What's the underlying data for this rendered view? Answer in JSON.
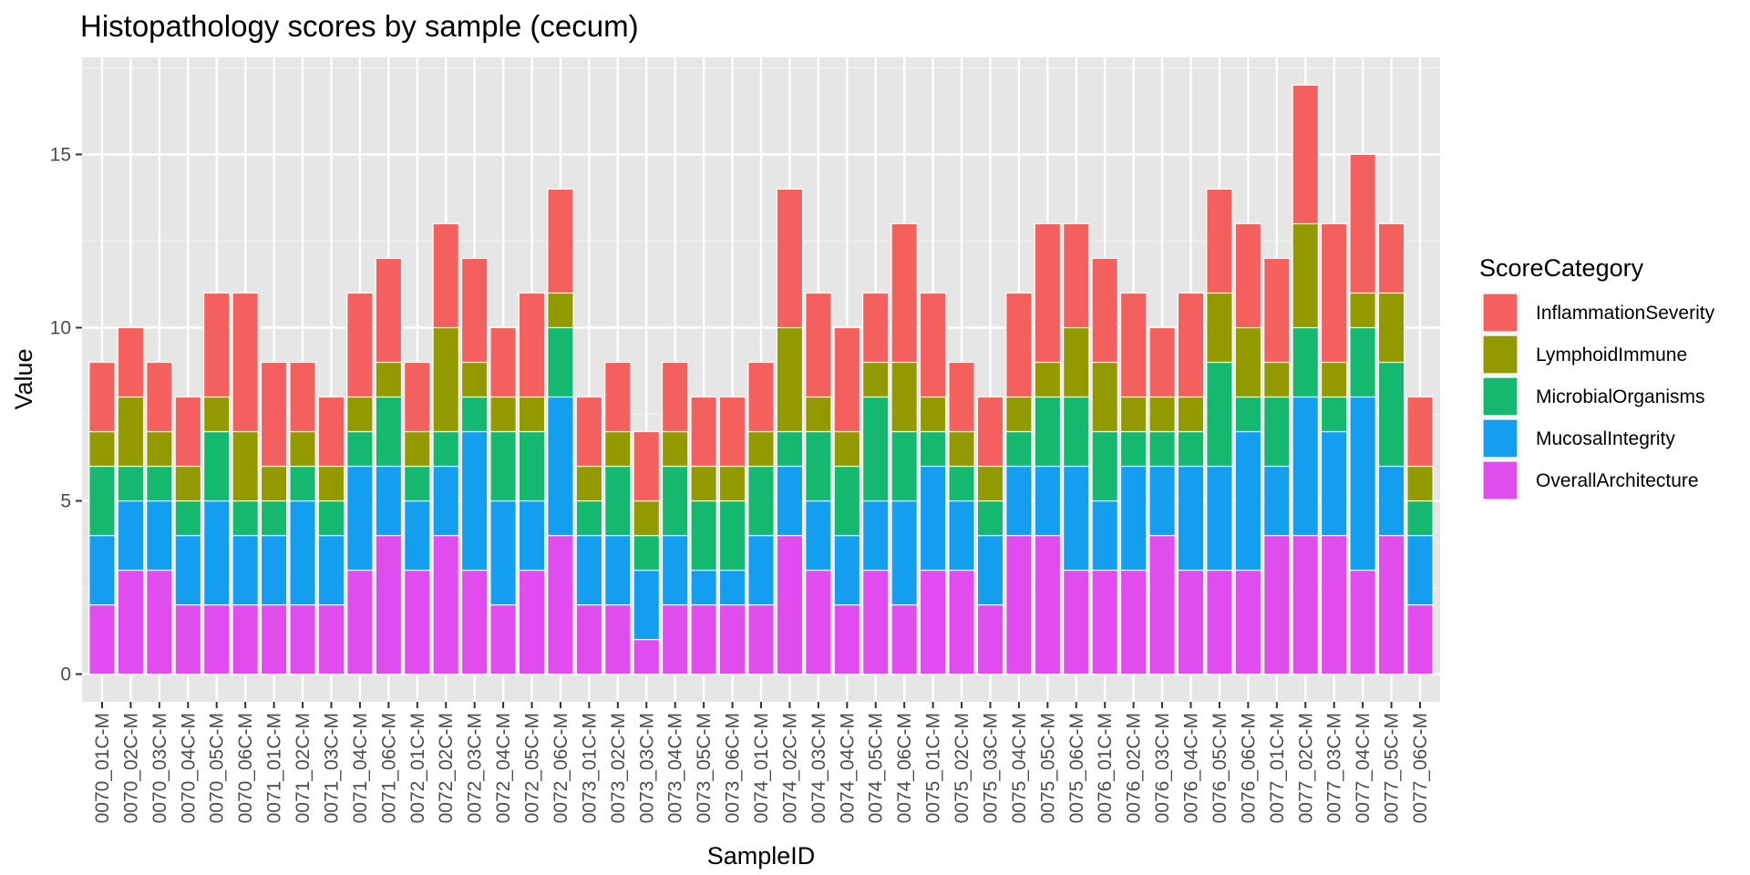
{
  "chart_data": {
    "type": "bar",
    "stacked": true,
    "title": "Histopathology scores by sample (cecum)",
    "xlabel": "SampleID",
    "ylabel": "Value",
    "ylim": [
      -0.8,
      17.8
    ],
    "yticks": [
      0,
      5,
      10,
      15
    ],
    "grid": true,
    "legend": {
      "title": "ScoreCategory",
      "position": "right"
    },
    "categories": [
      "0070_01C-M",
      "0070_02C-M",
      "0070_03C-M",
      "0070_04C-M",
      "0070_05C-M",
      "0070_06C-M",
      "0071_01C-M",
      "0071_02C-M",
      "0071_03C-M",
      "0071_04C-M",
      "0071_06C-M",
      "0072_01C-M",
      "0072_02C-M",
      "0072_03C-M",
      "0072_04C-M",
      "0072_05C-M",
      "0072_06C-M",
      "0073_01C-M",
      "0073_02C-M",
      "0073_03C-M",
      "0073_04C-M",
      "0073_05C-M",
      "0073_06C-M",
      "0074_01C-M",
      "0074_02C-M",
      "0074_03C-M",
      "0074_04C-M",
      "0074_05C-M",
      "0074_06C-M",
      "0075_01C-M",
      "0075_02C-M",
      "0075_03C-M",
      "0075_04C-M",
      "0075_05C-M",
      "0075_06C-M",
      "0076_01C-M",
      "0076_02C-M",
      "0076_03C-M",
      "0076_04C-M",
      "0076_05C-M",
      "0076_06C-M",
      "0077_01C-M",
      "0077_02C-M",
      "0077_03C-M",
      "0077_04C-M",
      "0077_05C-M",
      "0077_06C-M"
    ],
    "series": [
      {
        "name": "OverallArchitecture",
        "color": "#e04ced",
        "values": [
          2,
          3,
          3,
          2,
          2,
          2,
          2,
          2,
          2,
          3,
          4,
          3,
          4,
          3,
          2,
          3,
          4,
          2,
          2,
          1,
          2,
          2,
          2,
          2,
          4,
          3,
          2,
          3,
          2,
          3,
          3,
          2,
          4,
          4,
          3,
          3,
          3,
          4,
          3,
          3,
          3,
          4,
          4,
          4,
          3,
          4,
          2
        ]
      },
      {
        "name": "MucosalIntegrity",
        "color": "#149ef0",
        "values": [
          2,
          2,
          2,
          2,
          3,
          2,
          2,
          3,
          2,
          3,
          2,
          2,
          2,
          4,
          3,
          2,
          4,
          2,
          2,
          2,
          2,
          1,
          1,
          2,
          2,
          2,
          2,
          2,
          3,
          3,
          2,
          2,
          2,
          2,
          3,
          2,
          3,
          2,
          3,
          3,
          4,
          2,
          4,
          3,
          5,
          2,
          2
        ]
      },
      {
        "name": "MicrobialOrganisms",
        "color": "#14b86e",
        "values": [
          2,
          1,
          1,
          1,
          2,
          1,
          1,
          1,
          1,
          1,
          2,
          1,
          1,
          1,
          2,
          2,
          2,
          1,
          2,
          1,
          2,
          2,
          2,
          2,
          1,
          2,
          2,
          3,
          2,
          1,
          1,
          1,
          1,
          2,
          2,
          2,
          1,
          1,
          1,
          3,
          1,
          2,
          2,
          1,
          2,
          3,
          1
        ]
      },
      {
        "name": "LymphoidImmune",
        "color": "#939a00",
        "values": [
          1,
          2,
          1,
          1,
          1,
          2,
          1,
          1,
          1,
          1,
          1,
          1,
          3,
          1,
          1,
          1,
          1,
          1,
          1,
          1,
          1,
          1,
          1,
          1,
          3,
          1,
          1,
          1,
          2,
          1,
          1,
          1,
          1,
          1,
          2,
          2,
          1,
          1,
          1,
          2,
          2,
          1,
          3,
          1,
          1,
          2,
          1
        ]
      },
      {
        "name": "InflammationSeverity",
        "color": "#f4605e",
        "values": [
          2,
          2,
          2,
          2,
          3,
          4,
          3,
          2,
          2,
          3,
          3,
          2,
          3,
          3,
          2,
          3,
          3,
          2,
          2,
          2,
          2,
          2,
          2,
          2,
          4,
          3,
          3,
          2,
          4,
          3,
          2,
          2,
          3,
          4,
          3,
          3,
          3,
          2,
          3,
          3,
          3,
          3,
          4,
          4,
          4,
          2,
          2
        ]
      }
    ]
  }
}
